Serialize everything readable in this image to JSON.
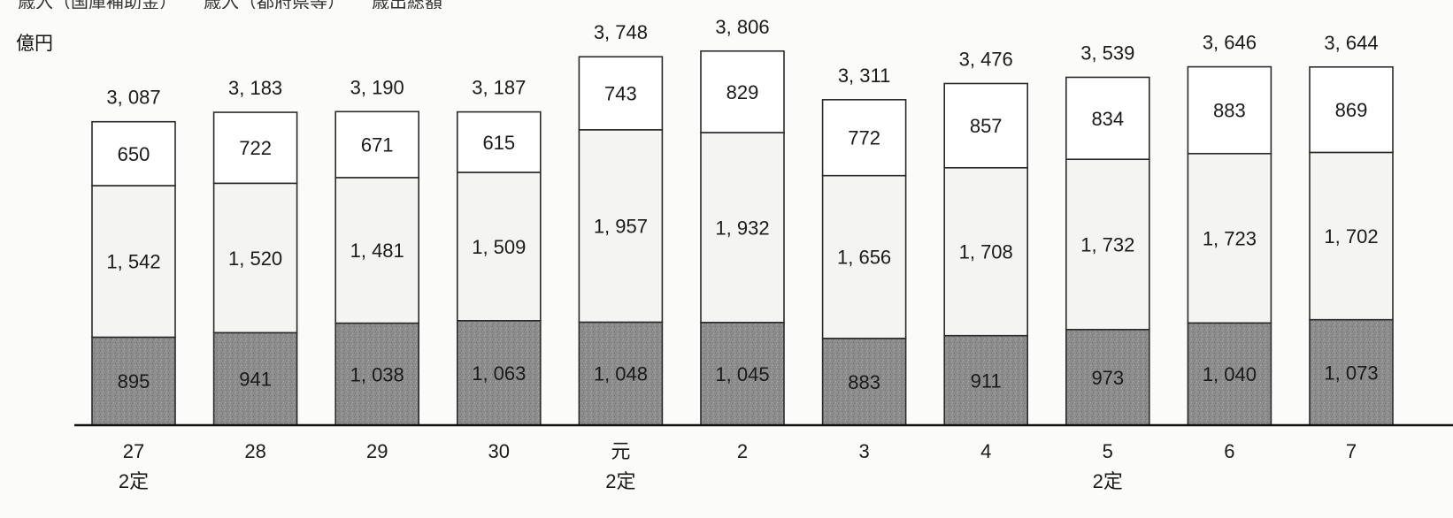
{
  "header": {
    "clipped_title": "　歳入（国庫補助金）　　歳入（都府県等）　　歳出総額",
    "unit": "億円"
  },
  "chart_data": {
    "type": "bar",
    "stacked": true,
    "categories": [
      "27",
      "28",
      "29",
      "30",
      "元",
      "2",
      "3",
      "4",
      "5",
      "6",
      "7"
    ],
    "sublabels": [
      "2定",
      "",
      "",
      "",
      "2定",
      "",
      "",
      "",
      "2定",
      "",
      ""
    ],
    "series": [
      {
        "values": [
          895,
          941,
          1038,
          1063,
          1048,
          1045,
          883,
          911,
          973,
          1040,
          1073
        ],
        "color": "#8a8a8a"
      },
      {
        "values": [
          1542,
          1520,
          1481,
          1509,
          1957,
          1932,
          1656,
          1708,
          1732,
          1723,
          1702
        ],
        "color": "#f4f4f2"
      },
      {
        "values": [
          650,
          722,
          671,
          615,
          743,
          829,
          772,
          857,
          834,
          883,
          869
        ],
        "color": "#ffffff"
      }
    ],
    "totals": [
      3087,
      3183,
      3190,
      3187,
      3748,
      3806,
      3311,
      3476,
      3539,
      3646,
      3644
    ],
    "value_format": "comma-space",
    "grid": false,
    "legend": "none"
  }
}
